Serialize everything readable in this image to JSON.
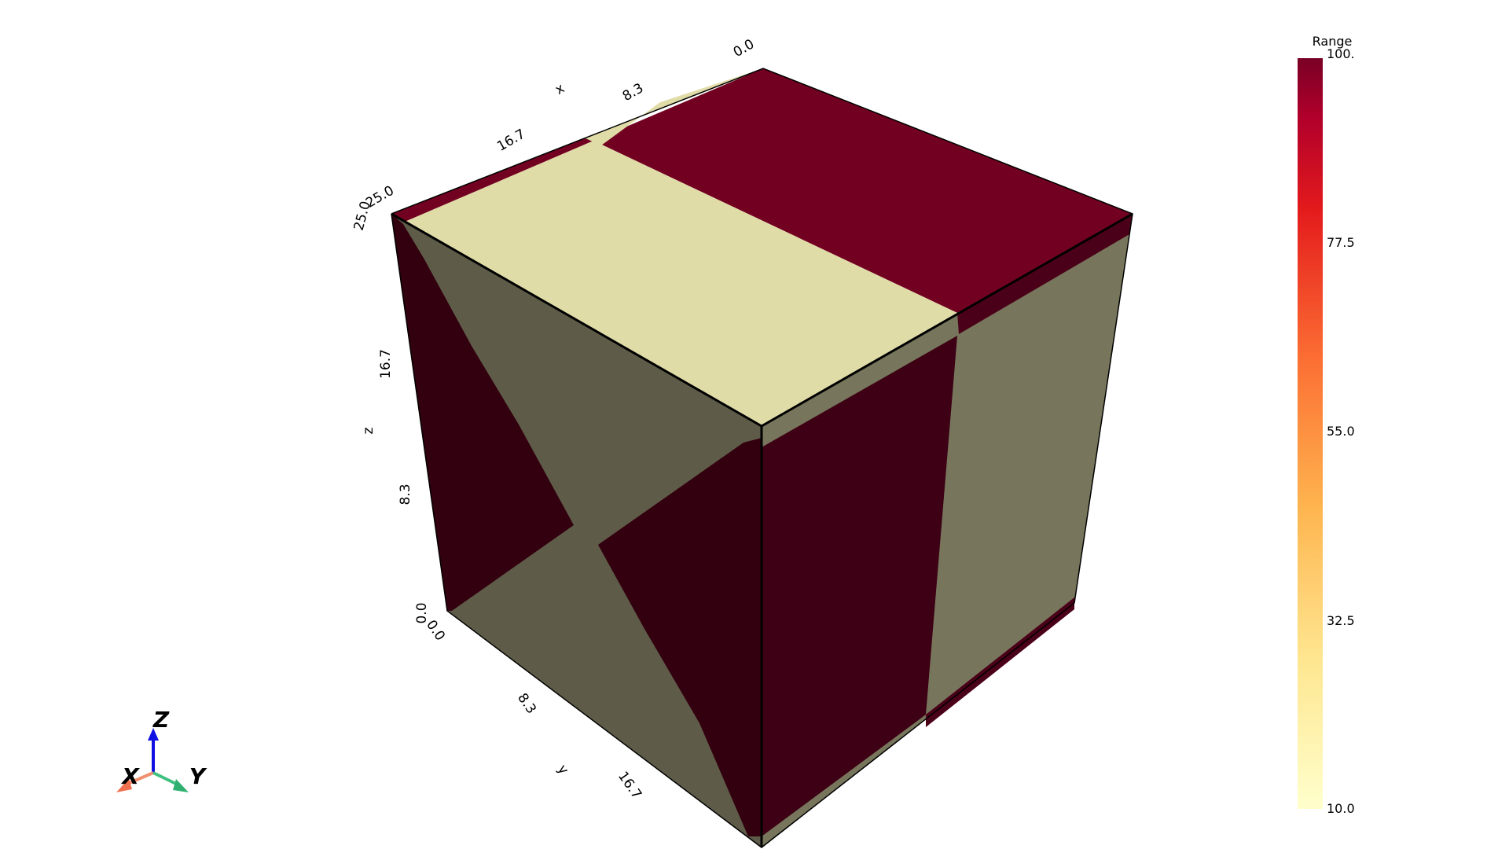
{
  "colorbar": {
    "title": "Range",
    "ticks": [
      "100.",
      "77.5",
      "55.0",
      "32.5",
      "10.0"
    ]
  },
  "axes": {
    "x": {
      "label": "x",
      "ticks": [
        "0.0",
        "8.3",
        "16.7",
        "25.0"
      ]
    },
    "y": {
      "label": "y",
      "ticks": [
        "0.0",
        "8.3",
        "16.7"
      ]
    },
    "z": {
      "label": "z",
      "ticks": [
        "25.0",
        "16.7",
        "8.3",
        "0.0"
      ]
    }
  },
  "orientation": {
    "x": "X",
    "y": "Y",
    "z": "Z"
  }
}
